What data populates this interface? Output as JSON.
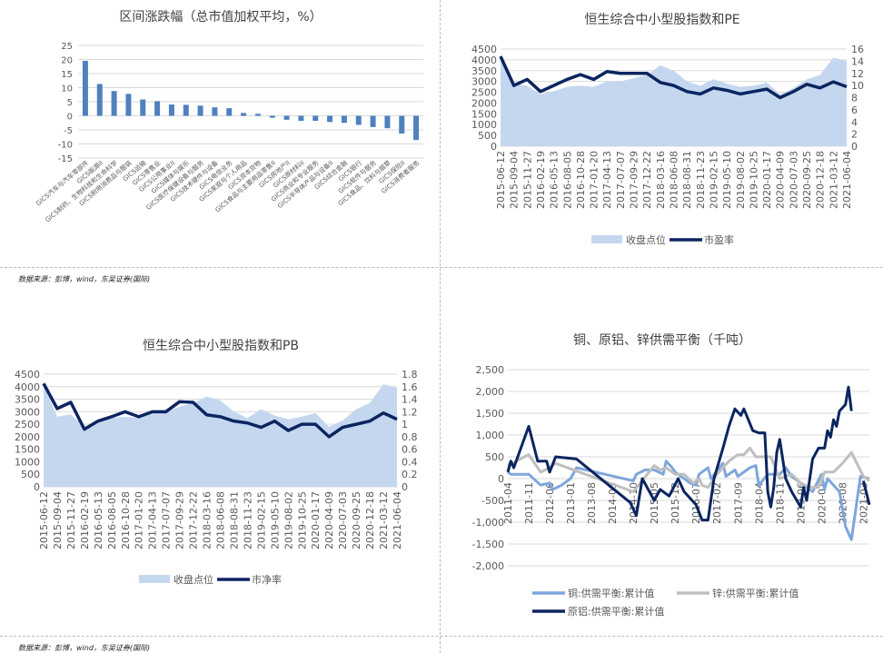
{
  "source_text": "数据来源：彭博，wind，东吴证券(国际)",
  "colors": {
    "bar": "#4f81bd",
    "area": "#c5d7ef",
    "dark": "#0b2560",
    "copper": "#7ea6dc",
    "zinc": "#bfbfbf",
    "grid": "#d9d9d9"
  },
  "chart_data": [
    {
      "type": "bar",
      "title": "区间涨跌幅（总市值加权平均，%）",
      "ylim": [
        -15,
        25
      ],
      "yticks": [
        25,
        20,
        15,
        10,
        5,
        0,
        -5,
        -10,
        -15
      ],
      "grid": true,
      "categories": [
        "GICS汽车与汽车零部件",
        "GICS能源II",
        "GICS制药、生物科技和生命科学",
        "GICS耐用消费品与服装",
        "GICS运输",
        "GICS零售业",
        "GICS公用事业II",
        "GICS媒体与娱乐",
        "GICS医疗保健设备与服务",
        "GICS技术硬件与设备",
        "GICS电信业务",
        "GICS家庭与个人用品",
        "GICS资本货物",
        "GICS食品与主要用品零售II",
        "GICS房地产II",
        "GICS原材料II",
        "GICS商业和专业服务",
        "GICS半导体产品与设备II",
        "GICS综合金融",
        "GICS银行",
        "GICS软件与服务",
        "GICS食品、饮料与烟草",
        "GICS保险II",
        "GICS消费者服务"
      ],
      "values": [
        19.5,
        11.3,
        8.8,
        7.8,
        5.8,
        5.2,
        4.0,
        3.9,
        3.6,
        3.0,
        2.7,
        1.0,
        0.7,
        -0.7,
        -1.4,
        -1.8,
        -1.8,
        -2.2,
        -2.5,
        -3.2,
        -4.0,
        -4.4,
        -6.3,
        -8.6
      ]
    },
    {
      "type": "area+line",
      "title": "恒生综合中小型股指数和PE",
      "x": [
        "2015-06-12",
        "2015-09-04",
        "2015-11-27",
        "2016-02-19",
        "2016-05-13",
        "2016-08-05",
        "2016-10-28",
        "2017-01-20",
        "2017-04-13",
        "2017-07-07",
        "2017-09-29",
        "2017-12-22",
        "2018-03-16",
        "2018-06-08",
        "2018-08-31",
        "2018-11-23",
        "2019-02-15",
        "2019-05-10",
        "2019-08-02",
        "2019-10-25",
        "2020-01-17",
        "2020-04-09",
        "2020-07-03",
        "2020-09-25",
        "2020-12-18",
        "2021-03-12",
        "2021-06-04"
      ],
      "ylim_left": [
        0,
        4500
      ],
      "yticks_left": [
        0,
        500,
        1000,
        1500,
        2000,
        2500,
        3000,
        3500,
        4000,
        4500
      ],
      "ylim_right": [
        0,
        16
      ],
      "yticks_right": [
        0,
        2,
        4,
        6,
        8,
        10,
        12,
        14,
        16
      ],
      "legend": "bottom",
      "series": [
        {
          "name": "收盘点位",
          "axis": "left",
          "values": [
            4100,
            2900,
            2800,
            2400,
            2550,
            2750,
            2800,
            2750,
            3000,
            3000,
            3150,
            3300,
            3750,
            3500,
            3000,
            2800,
            3100,
            2900,
            2750,
            2800,
            2950,
            2400,
            2700,
            3100,
            3300,
            4100,
            3950
          ]
        },
        {
          "name": "市盈率",
          "axis": "right",
          "values": [
            14.8,
            10,
            11,
            9,
            10,
            11,
            11.8,
            11,
            12.3,
            12,
            12,
            12,
            10.5,
            10,
            9,
            8.6,
            9.6,
            9.2,
            8.6,
            9,
            9.4,
            8,
            9,
            10.2,
            9.6,
            10.6,
            9.8
          ]
        }
      ]
    },
    {
      "type": "area+line",
      "title": "恒生综合中小型股指数和PB",
      "x": [
        "2015-06-12",
        "2015-09-04",
        "2015-11-27",
        "2016-02-19",
        "2016-05-13",
        "2016-08-05",
        "2016-10-28",
        "2017-01-20",
        "2017-04-13",
        "2017-07-07",
        "2017-09-29",
        "2017-12-22",
        "2018-03-16",
        "2018-06-08",
        "2018-08-31",
        "2018-11-23",
        "2019-02-15",
        "2019-05-10",
        "2019-08-02",
        "2019-10-25",
        "2020-01-17",
        "2020-04-09",
        "2020-07-03",
        "2020-09-25",
        "2020-12-18",
        "2021-03-12",
        "2021-06-04"
      ],
      "ylim_left": [
        0,
        4500
      ],
      "yticks_left": [
        0,
        500,
        1000,
        1500,
        2000,
        2500,
        3000,
        3500,
        4000,
        4500
      ],
      "ylim_right": [
        0,
        1.8
      ],
      "yticks_right": [
        "0",
        "0.2",
        "0.4",
        "0.6",
        "0.8",
        "1",
        "1.2",
        "1.4",
        "1.6",
        "1.8"
      ],
      "legend": "bottom",
      "series": [
        {
          "name": "收盘点位",
          "axis": "left",
          "values": [
            4100,
            2800,
            2900,
            2400,
            2550,
            2750,
            2800,
            2750,
            3000,
            3000,
            3200,
            3350,
            3600,
            3450,
            3000,
            2750,
            3100,
            2850,
            2700,
            2800,
            2950,
            2400,
            2650,
            3100,
            3350,
            4100,
            3950
          ]
        },
        {
          "name": "市净率",
          "axis": "right",
          "values": [
            1.65,
            1.25,
            1.35,
            0.92,
            1.05,
            1.12,
            1.2,
            1.12,
            1.2,
            1.2,
            1.36,
            1.35,
            1.15,
            1.12,
            1.05,
            1.02,
            0.95,
            1.05,
            0.9,
            1.0,
            1.0,
            0.8,
            0.95,
            1.0,
            1.05,
            1.18,
            1.08
          ]
        }
      ]
    },
    {
      "type": "line",
      "title": "铜、原铝、锌供需平衡（千吨）",
      "xticks": [
        "2011-04",
        "2011-11",
        "2012-06",
        "2013-01",
        "2013-08",
        "2014-03",
        "2014-10",
        "2015-05",
        "2015-12",
        "2016-07",
        "2017-02",
        "2017-09",
        "2018-04",
        "2018-11",
        "2019-06",
        "2020-01",
        "2020-08",
        "2021-03"
      ],
      "xlim": [
        "2011-04",
        "2021-05"
      ],
      "ylim": [
        -2000,
        2500
      ],
      "yticks": [
        "2,500",
        "2,000",
        "1,500",
        "1,000",
        "500",
        "0",
        "-500",
        "-1,000",
        "-1,500",
        "-2,000"
      ],
      "grid": true,
      "legend": "bottom",
      "series": [
        {
          "name": "铜:供需平衡:累计值",
          "color_key": "copper",
          "points": [
            [
              "2011-04",
              150
            ],
            [
              "2011-05",
              100
            ],
            [
              "2011-11",
              100
            ],
            [
              "2012-03",
              -150
            ],
            [
              "2012-06",
              -100
            ],
            [
              "2012-07",
              -250
            ],
            [
              "2012-10",
              -150
            ],
            [
              "2013-01",
              0
            ],
            [
              "2013-03",
              250
            ],
            [
              "2014-10",
              -50
            ],
            [
              "2014-11",
              100
            ],
            [
              "2015-02",
              200
            ],
            [
              "2015-05",
              200
            ],
            [
              "2015-08",
              100
            ],
            [
              "2015-09",
              400
            ],
            [
              "2015-11",
              250
            ],
            [
              "2015-12",
              150
            ],
            [
              "2016-05",
              -100
            ],
            [
              "2016-07",
              -150
            ],
            [
              "2016-08",
              100
            ],
            [
              "2016-11",
              250
            ],
            [
              "2016-12",
              0
            ],
            [
              "2017-04",
              350
            ],
            [
              "2017-05",
              50
            ],
            [
              "2017-08",
              200
            ],
            [
              "2017-09",
              50
            ],
            [
              "2018-01",
              250
            ],
            [
              "2018-03",
              300
            ],
            [
              "2018-04",
              -150
            ],
            [
              "2018-07",
              100
            ],
            [
              "2018-11",
              100
            ],
            [
              "2019-01",
              250
            ],
            [
              "2019-03",
              50
            ],
            [
              "2019-06",
              -100
            ],
            [
              "2019-10",
              -300
            ],
            [
              "2020-01",
              100
            ],
            [
              "2020-02",
              -250
            ],
            [
              "2020-03",
              0
            ],
            [
              "2020-07",
              -300
            ],
            [
              "2020-09",
              -1100
            ],
            [
              "2020-11",
              -1400
            ],
            [
              "2021-02",
              50
            ],
            [
              "2021-05",
              0
            ]
          ]
        },
        {
          "name": "锌:供需平衡:累计值",
          "color_key": "zinc",
          "points": [
            [
              "2011-04",
              300
            ],
            [
              "2011-11",
              550
            ],
            [
              "2012-03",
              150
            ],
            [
              "2012-06",
              250
            ],
            [
              "2012-08",
              350
            ],
            [
              "2013-08",
              50
            ],
            [
              "2014-10",
              -300
            ],
            [
              "2015-05",
              300
            ],
            [
              "2015-07",
              200
            ],
            [
              "2015-09",
              250
            ],
            [
              "2015-12",
              100
            ],
            [
              "2016-03",
              100
            ],
            [
              "2016-06",
              -100
            ],
            [
              "2016-08",
              0
            ],
            [
              "2016-09",
              -150
            ],
            [
              "2016-11",
              -200
            ],
            [
              "2017-02",
              100
            ],
            [
              "2017-06",
              400
            ],
            [
              "2017-09",
              550
            ],
            [
              "2017-11",
              550
            ],
            [
              "2018-01",
              700
            ],
            [
              "2018-03",
              500
            ],
            [
              "2018-08",
              500
            ],
            [
              "2018-11",
              0
            ],
            [
              "2019-03",
              100
            ],
            [
              "2019-06",
              -100
            ],
            [
              "2019-09",
              -200
            ],
            [
              "2019-12",
              -200
            ],
            [
              "2020-02",
              150
            ],
            [
              "2020-05",
              150
            ],
            [
              "2020-08",
              350
            ],
            [
              "2020-11",
              600
            ],
            [
              "2021-03",
              50
            ],
            [
              "2021-05",
              -50
            ]
          ]
        },
        {
          "name": "原铝:供需平衡:累计值",
          "color_key": "dark",
          "points": [
            [
              "2011-04",
              150
            ],
            [
              "2011-05",
              400
            ],
            [
              "2011-06",
              250
            ],
            [
              "2011-11",
              1200
            ],
            [
              "2012-02",
              400
            ],
            [
              "2012-05",
              400
            ],
            [
              "2012-06",
              150
            ],
            [
              "2012-08",
              500
            ],
            [
              "2013-03",
              450
            ],
            [
              "2014-09",
              -550
            ],
            [
              "2014-11",
              -850
            ],
            [
              "2015-01",
              0
            ],
            [
              "2015-03",
              -250
            ],
            [
              "2015-05",
              -500
            ],
            [
              "2015-07",
              -250
            ],
            [
              "2015-10",
              -400
            ],
            [
              "2016-01",
              0
            ],
            [
              "2016-03",
              -300
            ],
            [
              "2016-07",
              -600
            ],
            [
              "2016-09",
              -950
            ],
            [
              "2016-11",
              -950
            ],
            [
              "2017-01",
              0
            ],
            [
              "2017-04",
              700
            ],
            [
              "2017-06",
              1200
            ],
            [
              "2017-08",
              1600
            ],
            [
              "2017-10",
              1450
            ],
            [
              "2017-11",
              1600
            ],
            [
              "2018-02",
              1100
            ],
            [
              "2018-04",
              1050
            ],
            [
              "2018-06",
              1050
            ],
            [
              "2018-07",
              -300
            ],
            [
              "2018-08",
              -650
            ],
            [
              "2018-09",
              -200
            ],
            [
              "2018-10",
              600
            ],
            [
              "2018-11",
              900
            ],
            [
              "2019-01",
              0
            ],
            [
              "2019-03",
              -300
            ],
            [
              "2019-06",
              -650
            ],
            [
              "2019-07",
              -200
            ],
            [
              "2019-08",
              -500
            ],
            [
              "2019-10",
              450
            ],
            [
              "2019-12",
              700
            ],
            [
              "2020-02",
              700
            ],
            [
              "2020-03",
              1100
            ],
            [
              "2020-04",
              950
            ],
            [
              "2020-05",
              1350
            ],
            [
              "2020-06",
              1200
            ],
            [
              "2020-07",
              1550
            ],
            [
              "2020-09",
              1700
            ],
            [
              "2020-10",
              2100
            ],
            [
              "2020-11",
              1550
            ],
            null,
            [
              "2021-03",
              -50
            ],
            [
              "2021-05",
              -600
            ]
          ]
        }
      ]
    }
  ]
}
